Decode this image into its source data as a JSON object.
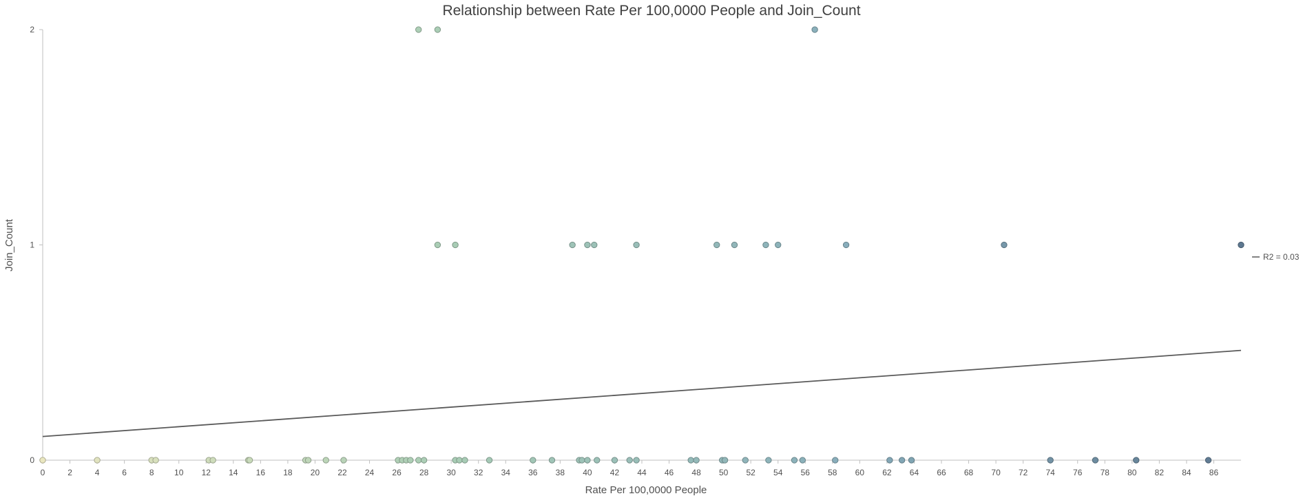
{
  "chart_data": {
    "type": "scatter",
    "title": "Relationship between Rate Per 100,0000 People and Join_Count",
    "xlabel": "Rate Per 100,0000 People",
    "ylabel": "Join_Count",
    "xlim": [
      0,
      88
    ],
    "ylim": [
      0,
      2
    ],
    "x_ticks": [
      "0",
      "2",
      "4",
      "6",
      "8",
      "10",
      "12",
      "14",
      "16",
      "18",
      "20",
      "22",
      "24",
      "26",
      "28",
      "30",
      "32",
      "34",
      "36",
      "38",
      "40",
      "42",
      "44",
      "46",
      "48",
      "50",
      "52",
      "54",
      "56",
      "58",
      "60",
      "62",
      "64",
      "66",
      "68",
      "70",
      "72",
      "74",
      "76",
      "78",
      "80",
      "82",
      "84",
      "86"
    ],
    "y_ticks": [
      "0",
      "1",
      "2"
    ],
    "grid": false,
    "legend_position": "right",
    "trendline": {
      "label": "R2 = 0.03",
      "y_at_start": 0.11,
      "y_at_end": 0.51,
      "color": "#595959"
    },
    "color_scale": [
      "#eae7c0",
      "#a9cdb5",
      "#88aebb",
      "#5d7890"
    ],
    "points": [
      {
        "x": 0.0,
        "y": 0
      },
      {
        "x": 4.0,
        "y": 0
      },
      {
        "x": 8.0,
        "y": 0
      },
      {
        "x": 8.3,
        "y": 0
      },
      {
        "x": 12.2,
        "y": 0
      },
      {
        "x": 12.5,
        "y": 0
      },
      {
        "x": 15.1,
        "y": 0
      },
      {
        "x": 15.2,
        "y": 0
      },
      {
        "x": 19.3,
        "y": 0
      },
      {
        "x": 19.5,
        "y": 0
      },
      {
        "x": 20.8,
        "y": 0
      },
      {
        "x": 22.1,
        "y": 0
      },
      {
        "x": 26.1,
        "y": 0
      },
      {
        "x": 26.4,
        "y": 0
      },
      {
        "x": 26.7,
        "y": 0
      },
      {
        "x": 27.0,
        "y": 0
      },
      {
        "x": 27.6,
        "y": 0
      },
      {
        "x": 28.0,
        "y": 0
      },
      {
        "x": 30.3,
        "y": 0
      },
      {
        "x": 30.6,
        "y": 0
      },
      {
        "x": 31.0,
        "y": 0
      },
      {
        "x": 32.8,
        "y": 0
      },
      {
        "x": 36.0,
        "y": 0
      },
      {
        "x": 37.4,
        "y": 0
      },
      {
        "x": 39.4,
        "y": 0
      },
      {
        "x": 39.6,
        "y": 0
      },
      {
        "x": 40.0,
        "y": 0
      },
      {
        "x": 40.7,
        "y": 0
      },
      {
        "x": 42.0,
        "y": 0
      },
      {
        "x": 43.1,
        "y": 0
      },
      {
        "x": 43.6,
        "y": 0
      },
      {
        "x": 47.6,
        "y": 0
      },
      {
        "x": 48.0,
        "y": 0
      },
      {
        "x": 49.9,
        "y": 0
      },
      {
        "x": 50.1,
        "y": 0
      },
      {
        "x": 51.6,
        "y": 0
      },
      {
        "x": 53.3,
        "y": 0
      },
      {
        "x": 55.2,
        "y": 0
      },
      {
        "x": 55.8,
        "y": 0
      },
      {
        "x": 58.2,
        "y": 0
      },
      {
        "x": 62.2,
        "y": 0
      },
      {
        "x": 63.1,
        "y": 0
      },
      {
        "x": 63.8,
        "y": 0
      },
      {
        "x": 74.0,
        "y": 0
      },
      {
        "x": 77.3,
        "y": 0
      },
      {
        "x": 80.3,
        "y": 0
      },
      {
        "x": 85.6,
        "y": 0
      },
      {
        "x": 29.0,
        "y": 1
      },
      {
        "x": 30.3,
        "y": 1
      },
      {
        "x": 38.9,
        "y": 1
      },
      {
        "x": 40.0,
        "y": 1
      },
      {
        "x": 40.5,
        "y": 1
      },
      {
        "x": 43.6,
        "y": 1
      },
      {
        "x": 49.5,
        "y": 1
      },
      {
        "x": 50.8,
        "y": 1
      },
      {
        "x": 53.1,
        "y": 1
      },
      {
        "x": 54.0,
        "y": 1
      },
      {
        "x": 59.0,
        "y": 1
      },
      {
        "x": 70.6,
        "y": 1
      },
      {
        "x": 88.0,
        "y": 1
      },
      {
        "x": 27.6,
        "y": 2
      },
      {
        "x": 29.0,
        "y": 2
      },
      {
        "x": 56.7,
        "y": 2
      }
    ]
  }
}
